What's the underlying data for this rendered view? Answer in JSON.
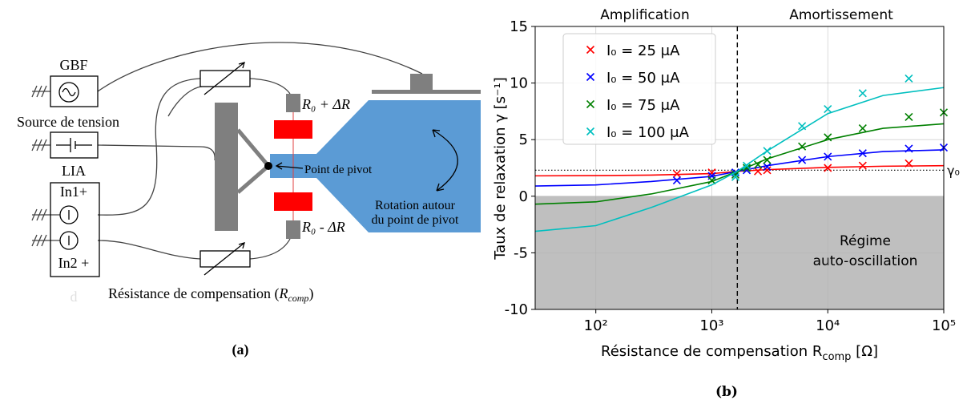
{
  "diagram": {
    "gbf": "GBF",
    "source": "Source de tension",
    "lia": "LIA",
    "in1": "In1+",
    "in2": "In2 +",
    "faint": "d",
    "r_plus": "R₀ + ΔR",
    "r_minus": "R₀ - ΔR",
    "pivot": "Point de pivot",
    "rotation": [
      "Rotation  autour",
      "du point de pivot"
    ],
    "compensation": [
      "Résistance de compensation (",
      "R",
      "comp",
      ")"
    ],
    "caption": "(a)"
  },
  "chart_data": {
    "type": "scatter",
    "caption": "(b)",
    "xlabel": [
      "Résistance de compensation R",
      "comp",
      " [Ω]"
    ],
    "ylabel": "Taux de relaxation γ [s⁻¹]",
    "annotations": {
      "left": "Amplification",
      "right": "Amortissement",
      "region": [
        "Régime",
        "auto-oscillation"
      ]
    },
    "xscale": "log",
    "xlim": [
      30,
      100000
    ],
    "ylim": [
      -10,
      15
    ],
    "xticks": [
      {
        "value": 100,
        "label": "10²"
      },
      {
        "value": 1000,
        "label": "10³"
      },
      {
        "value": 10000,
        "label": "10⁴"
      },
      {
        "value": 100000,
        "label": "10⁵"
      }
    ],
    "yticks": [
      -10,
      -5,
      0,
      5,
      10,
      15
    ],
    "grid": true,
    "legend": "upper left",
    "shaded_below": 0,
    "shade_color": "#bfbfbf",
    "vline": 1660,
    "hline": {
      "value": 2.3,
      "label": "γ₀"
    },
    "series": [
      {
        "name": "I₀ = 25 μA",
        "color": "#ff0000",
        "x": [
          500,
          1000,
          2500,
          3000,
          10000,
          20000,
          50000
        ],
        "values": [
          1.98,
          2.1,
          2.2,
          2.3,
          2.5,
          2.7,
          2.9
        ],
        "fit": {
          "x": [
            30,
            100,
            300,
            1000,
            1660,
            3000,
            10000,
            30000,
            100000
          ],
          "values": [
            1.8,
            1.82,
            1.87,
            2.0,
            2.2,
            2.35,
            2.55,
            2.65,
            2.7
          ]
        }
      },
      {
        "name": "I₀ = 50 μA",
        "color": "#0000ff",
        "x": [
          500,
          1000,
          1600,
          2000,
          3000,
          6000,
          10000,
          20000,
          50000,
          100000
        ],
        "values": [
          1.4,
          1.8,
          2.1,
          2.3,
          2.6,
          3.2,
          3.5,
          3.8,
          4.2,
          4.3
        ],
        "fit": {
          "x": [
            30,
            100,
            300,
            1000,
            1660,
            3000,
            10000,
            30000,
            100000
          ],
          "values": [
            0.9,
            1.0,
            1.3,
            1.75,
            2.2,
            2.7,
            3.5,
            3.95,
            4.1
          ]
        }
      },
      {
        "name": "I₀ = 75 μA",
        "color": "#008000",
        "x": [
          1000,
          1600,
          2000,
          2500,
          3000,
          6000,
          10000,
          20000,
          50000,
          100000
        ],
        "values": [
          1.4,
          1.9,
          2.5,
          2.8,
          3.2,
          4.4,
          5.2,
          6.0,
          7.0,
          7.4
        ],
        "fit": {
          "x": [
            30,
            100,
            300,
            1000,
            1660,
            3000,
            10000,
            30000,
            100000
          ],
          "values": [
            -0.7,
            -0.5,
            0.2,
            1.3,
            2.2,
            3.3,
            5.0,
            6.0,
            6.4
          ]
        }
      },
      {
        "name": "I₀ = 100 μA",
        "color": "#00bfbf",
        "x": [
          1600,
          2000,
          3000,
          6000,
          10000,
          20000,
          50000
        ],
        "values": [
          1.7,
          2.7,
          4.0,
          6.2,
          7.7,
          9.1,
          10.4
        ],
        "fit": {
          "x": [
            30,
            100,
            300,
            1000,
            1660,
            3000,
            10000,
            30000,
            100000
          ],
          "values": [
            -3.1,
            -2.6,
            -1.0,
            1.0,
            2.2,
            4.0,
            7.3,
            8.9,
            9.6
          ]
        }
      }
    ]
  }
}
